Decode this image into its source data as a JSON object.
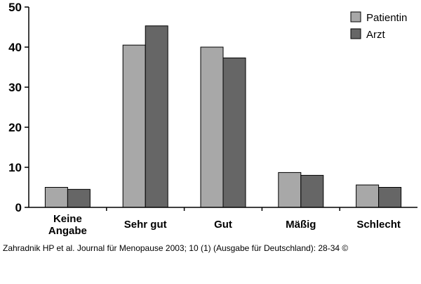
{
  "chart_data": {
    "type": "bar",
    "categories": [
      [
        "Keine",
        "Angabe"
      ],
      [
        "Sehr gut"
      ],
      [
        "Gut"
      ],
      [
        "Mäßig"
      ],
      [
        "Schlecht"
      ]
    ],
    "series": [
      {
        "name": "Patientin",
        "values": [
          5,
          40.5,
          40,
          8.7,
          5.6
        ],
        "color": "#a8a8a8"
      },
      {
        "name": "Arzt",
        "values": [
          4.5,
          45.3,
          37.3,
          8,
          5
        ],
        "color": "#666666"
      }
    ],
    "yticks": [
      0,
      10,
      20,
      30,
      40,
      50
    ],
    "ylim": [
      0,
      50
    ],
    "grid": false,
    "legend": "top-right"
  },
  "caption": "Zahradnik HP et al. Journal für Menopause 2003; 10 (1) (Ausgabe für Deutschland): 28-34 ©"
}
